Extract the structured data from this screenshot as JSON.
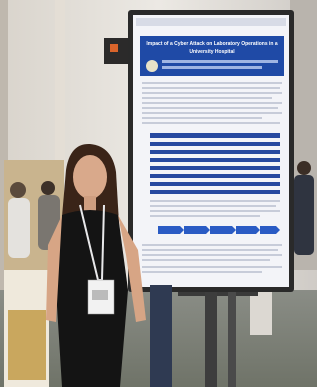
{
  "poster": {
    "title_lines": [
      "Impact of a Cyber Attack on Laboratory Operations in a",
      "University Hospital"
    ]
  }
}
